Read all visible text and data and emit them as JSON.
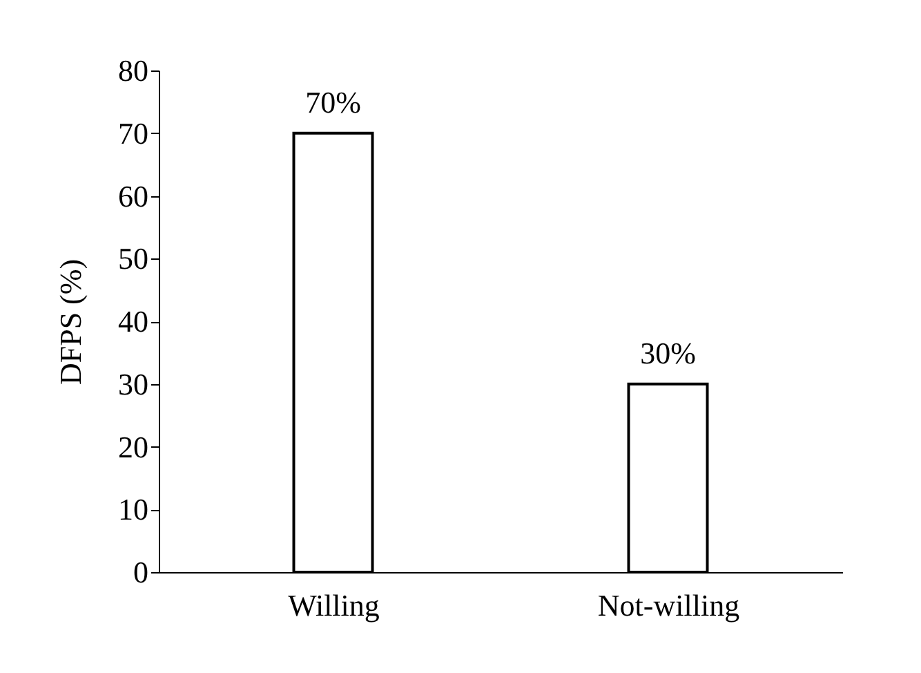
{
  "chart_data": {
    "type": "bar",
    "ylabel": "DFPS (%)",
    "categories": [
      "Willing",
      "Not-willing"
    ],
    "values": [
      70,
      30
    ],
    "color": "#ffffff",
    "value_labels": [
      "70%",
      "30%"
    ],
    "ylim": [
      0,
      80
    ],
    "yticks": [
      0,
      10,
      20,
      30,
      40,
      50,
      60,
      70,
      80
    ],
    "grid": false
  }
}
